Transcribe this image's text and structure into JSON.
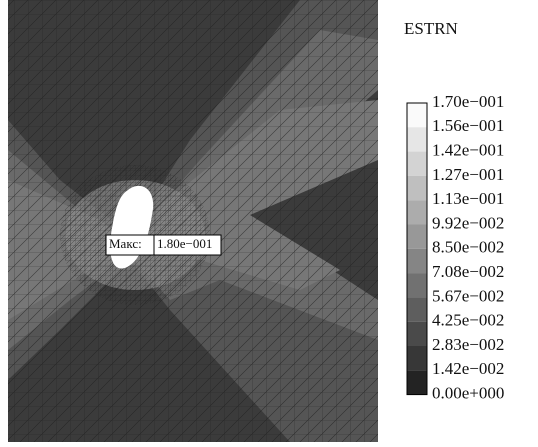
{
  "title": "ESTRN",
  "legend": {
    "labels": [
      "1.70e−001",
      "1.56e−001",
      "1.42e−001",
      "1.27e−001",
      "1.13e−001",
      "9.92e−002",
      "8.50e−002",
      "7.08e−002",
      "5.67e−002",
      "4.25e−002",
      "2.83e−002",
      "1.42e−002",
      "0.00e+000"
    ]
  },
  "annotation": {
    "label": "Макс:",
    "value": "1.80e−001"
  }
}
